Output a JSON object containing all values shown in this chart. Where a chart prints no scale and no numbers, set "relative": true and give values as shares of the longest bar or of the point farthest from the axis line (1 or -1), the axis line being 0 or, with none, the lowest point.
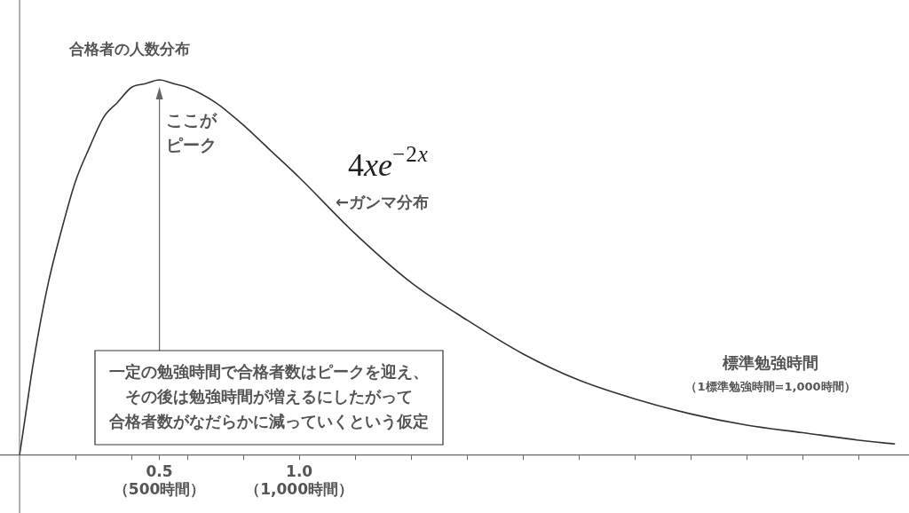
{
  "chart_data": {
    "type": "line",
    "title": "合格者の人数分布",
    "xlabel": "標準勉強時間",
    "relative": true,
    "color": "#333333",
    "marker": "none",
    "x": [
      0,
      0.02,
      0.05,
      0.1,
      0.15,
      0.2,
      0.25,
      0.3,
      0.35,
      0.4,
      0.45,
      0.5,
      0.55,
      0.6,
      0.7,
      0.8,
      0.9,
      1.0,
      1.2,
      1.4,
      1.6,
      1.8,
      2.0,
      2.2,
      2.4,
      2.6,
      2.8,
      3.0,
      3.13
    ],
    "values": [
      0,
      0.1,
      0.25,
      0.45,
      0.6,
      0.73,
      0.82,
      0.9,
      0.94,
      0.98,
      0.99,
      1,
      0.99,
      0.98,
      0.94,
      0.88,
      0.81,
      0.74,
      0.59,
      0.46,
      0.36,
      0.27,
      0.2,
      0.15,
      0.11,
      0.08,
      0.06,
      0.04,
      0.03
    ],
    "xlim": [
      -0.07,
      3.18
    ],
    "xticks": [
      {
        "value": 0.2,
        "label": null
      },
      {
        "value": 0.4,
        "label": null
      },
      0.5,
      {
        "value": 0.6,
        "label": null
      },
      {
        "value": 0.8,
        "label": null
      },
      {
        "value": 1.0,
        "label": "1.0"
      },
      {
        "value": 1.2,
        "label": null
      },
      {
        "value": 1.4,
        "label": null
      },
      {
        "value": 1.6,
        "label": null
      },
      {
        "value": 1.8,
        "label": null
      },
      {
        "value": 2.0,
        "label": null
      },
      {
        "value": 2.2,
        "label": null
      },
      {
        "value": 2.4,
        "label": null
      },
      {
        "value": 2.6,
        "label": null
      },
      {
        "value": 2.8,
        "label": null
      },
      {
        "value": 3.0,
        "label": null
      }
    ],
    "annotations": [
      {
        "text": "ここがピーク",
        "x": 0.5,
        "y": 1
      },
      {
        "text": "←ガンマ分布",
        "x": 1.13,
        "y": 0.64
      },
      "4xe$^{−2x}$",
      "一定の勉強時間で合格者数はピークを迎え、その後は勉強時間が増えるにしたがって合格者数がなだらかに減っていくという仮定",
      "（1標準勉強時間=1,000時間）",
      "（500時間）",
      "（1,000時間）"
    ]
  }
}
